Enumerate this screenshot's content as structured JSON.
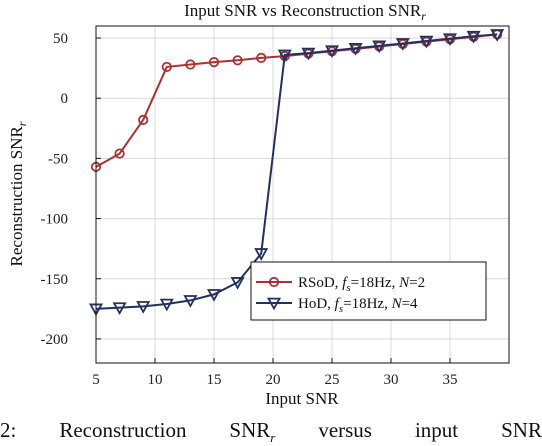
{
  "chart_data": {
    "type": "line",
    "title": "Input SNR vs Reconstruction SNR",
    "title_sub": "r",
    "xlabel": "Input SNR",
    "ylabel": "Reconstruction SNR",
    "ylabel_sub": "r",
    "xlim": [
      5,
      40
    ],
    "ylim": [
      -220,
      60
    ],
    "xticks": [
      5,
      10,
      15,
      20,
      25,
      30,
      35
    ],
    "yticks": [
      50,
      0,
      -50,
      -100,
      -150,
      -200
    ],
    "grid": true,
    "legend_position": "bottom-right",
    "series": [
      {
        "name": "RSoD, fs=18Hz, N=2",
        "legend_parts": {
          "prefix": "RSoD, ",
          "f": "f",
          "s": "s",
          "mid": "=18Hz, ",
          "N": "N",
          "suffix": "=2"
        },
        "color": "#b03030",
        "marker": "circle",
        "x": [
          5,
          7,
          9,
          11,
          13,
          15,
          17,
          19,
          21,
          23,
          25,
          27,
          29,
          31,
          33,
          35,
          37,
          39
        ],
        "y": [
          -57,
          -46,
          -18,
          26,
          28,
          30,
          31.5,
          33.5,
          35,
          37,
          39,
          41,
          43,
          45,
          47,
          49,
          51,
          53
        ]
      },
      {
        "name": "HoD, fs=18Hz, N=4",
        "legend_parts": {
          "prefix": "HoD, ",
          "f": "f",
          "s": "s",
          "mid": "=18Hz, ",
          "N": "N",
          "suffix": "=4"
        },
        "color": "#24305e",
        "marker": "triangle-down",
        "x": [
          5,
          7,
          9,
          11,
          13,
          15,
          17,
          19,
          21,
          23,
          25,
          27,
          29,
          31,
          33,
          35,
          37,
          39
        ],
        "y": [
          -175,
          -174,
          -173,
          -171,
          -168,
          -163,
          -153,
          -129,
          36,
          37.5,
          39.5,
          41.5,
          43.5,
          45.5,
          47.5,
          49.5,
          51.5,
          53
        ]
      }
    ]
  },
  "caption": {
    "words": [
      "2:",
      "Reconstruction",
      "SNR",
      "versus",
      "input",
      "SNR"
    ],
    "sub": "r"
  }
}
